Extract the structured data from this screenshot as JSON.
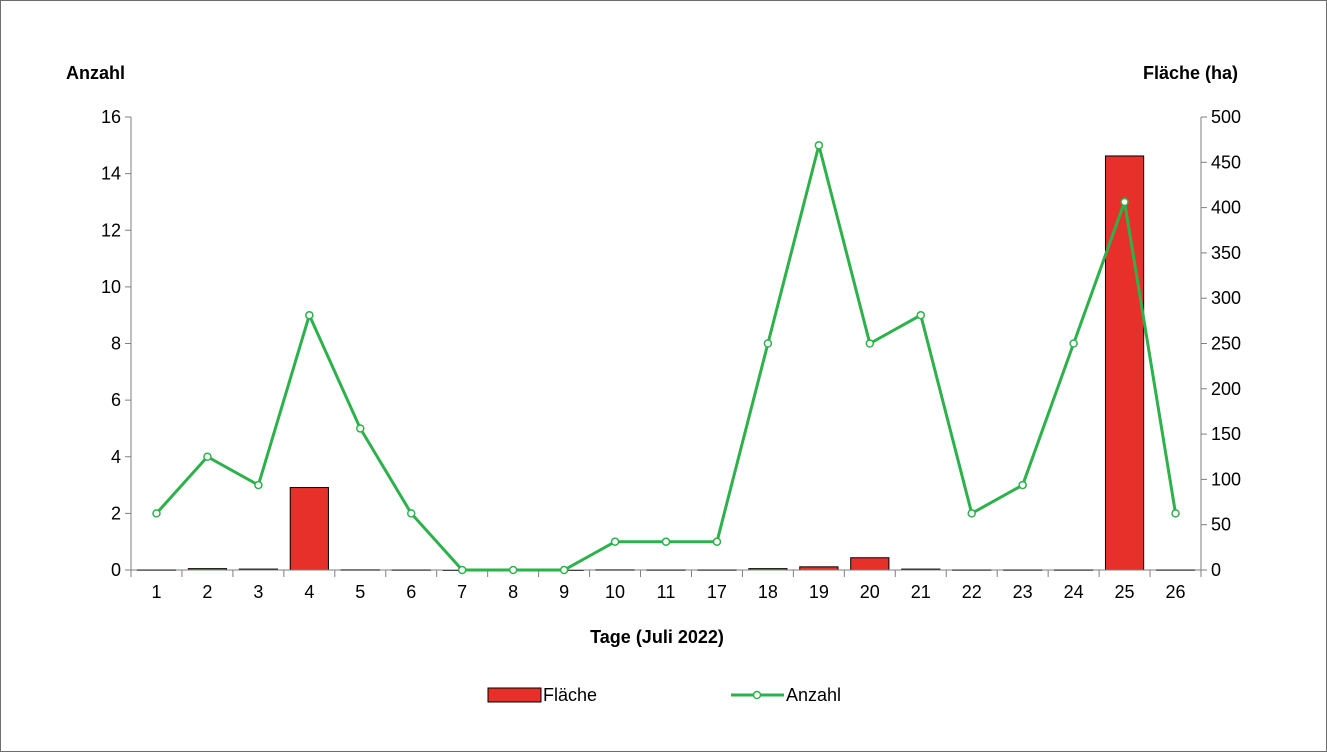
{
  "chart_data": {
    "type": "bar",
    "xlabel": "Tage (Juli 2022)",
    "y_left_label": "Anzahl",
    "y_right_label": "Fläche (ha)",
    "y_left_lim": [
      0,
      16
    ],
    "y_left_ticks": [
      "0",
      "2",
      "4",
      "6",
      "8",
      "10",
      "12",
      "14",
      "16"
    ],
    "y_right_lim": [
      0,
      500
    ],
    "y_right_ticks": [
      "0",
      "50",
      "100",
      "150",
      "200",
      "250",
      "300",
      "350",
      "400",
      "450",
      "500"
    ],
    "categories": [
      "1",
      "2",
      "3",
      "4",
      "5",
      "6",
      "7",
      "8",
      "9",
      "10",
      "11",
      "17",
      "18",
      "19",
      "20",
      "21",
      "22",
      "23",
      "24",
      "25",
      "26"
    ],
    "series": [
      {
        "name": "Fläche",
        "kind": "bar",
        "axis": "right",
        "color": "#e8302a",
        "values": [
          0.2,
          1.5,
          1.0,
          91,
          0.3,
          0.2,
          0,
          0,
          0,
          0.3,
          0.2,
          0.2,
          1.5,
          3.5,
          13.5,
          1.0,
          0.2,
          0.2,
          0.2,
          457,
          0.2
        ]
      },
      {
        "name": "Anzahl",
        "kind": "line",
        "axis": "left",
        "color": "#2db14a",
        "values": [
          2,
          4,
          3,
          9,
          5,
          2,
          0,
          0,
          0,
          1,
          1,
          1,
          8,
          15,
          8,
          9,
          2,
          3,
          8,
          13,
          2
        ]
      }
    ],
    "grid": false,
    "legend_position": "bottom"
  }
}
